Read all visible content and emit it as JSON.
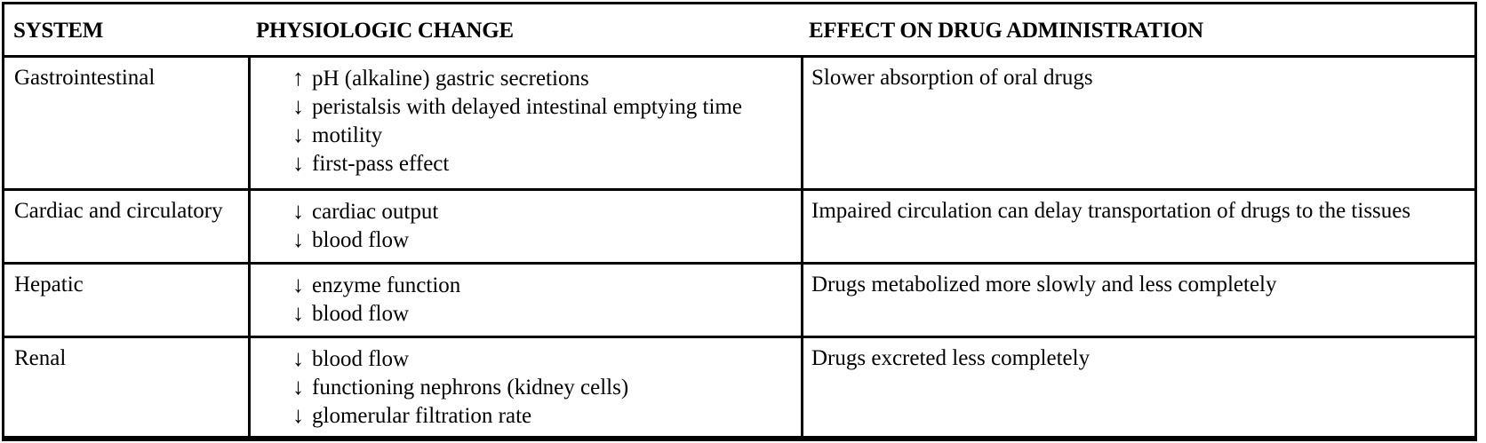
{
  "table": {
    "headers": [
      "SYSTEM",
      "PHYSIOLOGIC CHANGE",
      "EFFECT ON DRUG ADMINISTRATION"
    ],
    "border_color": "#000000",
    "rows": [
      {
        "system": "Gastrointestinal",
        "changes": [
          {
            "direction": "up",
            "arrow": "↑",
            "text": "pH (alkaline) gastric secretions"
          },
          {
            "direction": "down",
            "arrow": "↓",
            "text": "peristalsis with delayed intestinal emptying time"
          },
          {
            "direction": "down",
            "arrow": "↓",
            "text": "motility"
          },
          {
            "direction": "down",
            "arrow": "↓",
            "text": "first-pass effect"
          }
        ],
        "effect": "Slower absorption of oral drugs"
      },
      {
        "system": "Cardiac and circulatory",
        "changes": [
          {
            "direction": "down",
            "arrow": "↓",
            "text": "cardiac output"
          },
          {
            "direction": "down",
            "arrow": "↓",
            "text": "blood flow"
          }
        ],
        "effect": "Impaired circulation can delay transportation of drugs to the tissues"
      },
      {
        "system": "Hepatic",
        "changes": [
          {
            "direction": "down",
            "arrow": "↓",
            "text": "enzyme function"
          },
          {
            "direction": "down",
            "arrow": "↓",
            "text": "blood flow"
          }
        ],
        "effect": "Drugs metabolized more slowly and less completely"
      },
      {
        "system": "Renal",
        "changes": [
          {
            "direction": "down",
            "arrow": "↓",
            "text": "blood flow"
          },
          {
            "direction": "down",
            "arrow": "↓",
            "text": "functioning nephrons (kidney cells)"
          },
          {
            "direction": "down",
            "arrow": "↓",
            "text": "glomerular filtration rate"
          }
        ],
        "effect": "Drugs excreted less completely"
      }
    ]
  }
}
